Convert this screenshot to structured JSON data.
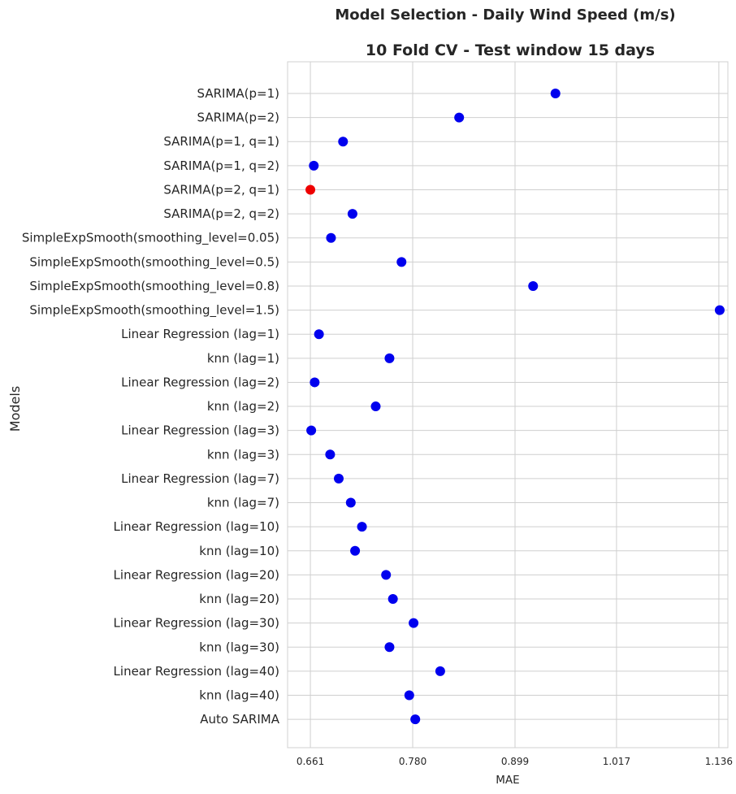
{
  "chart_data": {
    "type": "scatter",
    "title": "Model Selection - Daily Wind Speed (m/s)",
    "subtitle": "10 Fold CV - Test window 15 days",
    "xlabel": "MAE",
    "ylabel": "Models",
    "xticks": [
      "0.661",
      "0.780",
      "0.899",
      "1.017",
      "1.136"
    ],
    "xlim": [
      0.6345,
      1.1465
    ],
    "grid": true,
    "colors": {
      "default": "#0000ee",
      "highlight": "#ee0000",
      "grid": "#cfcfcf",
      "frame": "#d0d0d0"
    },
    "highlight_index": 4,
    "categories": [
      "SARIMA(p=1)",
      "SARIMA(p=2)",
      "SARIMA(p=1, q=1)",
      "SARIMA(p=1, q=2)",
      "SARIMA(p=2, q=1)",
      "SARIMA(p=2, q=2)",
      "SimpleExpSmooth(smoothing_level=0.05)",
      "SimpleExpSmooth(smoothing_level=0.5)",
      "SimpleExpSmooth(smoothing_level=0.8)",
      "SimpleExpSmooth(smoothing_level=1.5)",
      "Linear Regression (lag=1)",
      "knn (lag=1)",
      "Linear Regression (lag=2)",
      "knn (lag=2)",
      "Linear Regression (lag=3)",
      "knn (lag=3)",
      "Linear Regression (lag=7)",
      "knn (lag=7)",
      "Linear Regression (lag=10)",
      "knn (lag=10)",
      "Linear Regression (lag=20)",
      "knn (lag=20)",
      "Linear Regression (lag=30)",
      "knn (lag=30)",
      "Linear Regression (lag=40)",
      "knn (lag=40)",
      "Auto SARIMA"
    ],
    "values": [
      0.946,
      0.834,
      0.699,
      0.665,
      0.661,
      0.71,
      0.685,
      0.767,
      0.92,
      1.137,
      0.671,
      0.753,
      0.666,
      0.737,
      0.662,
      0.684,
      0.694,
      0.708,
      0.721,
      0.713,
      0.749,
      0.757,
      0.781,
      0.753,
      0.812,
      0.776,
      0.783
    ]
  }
}
